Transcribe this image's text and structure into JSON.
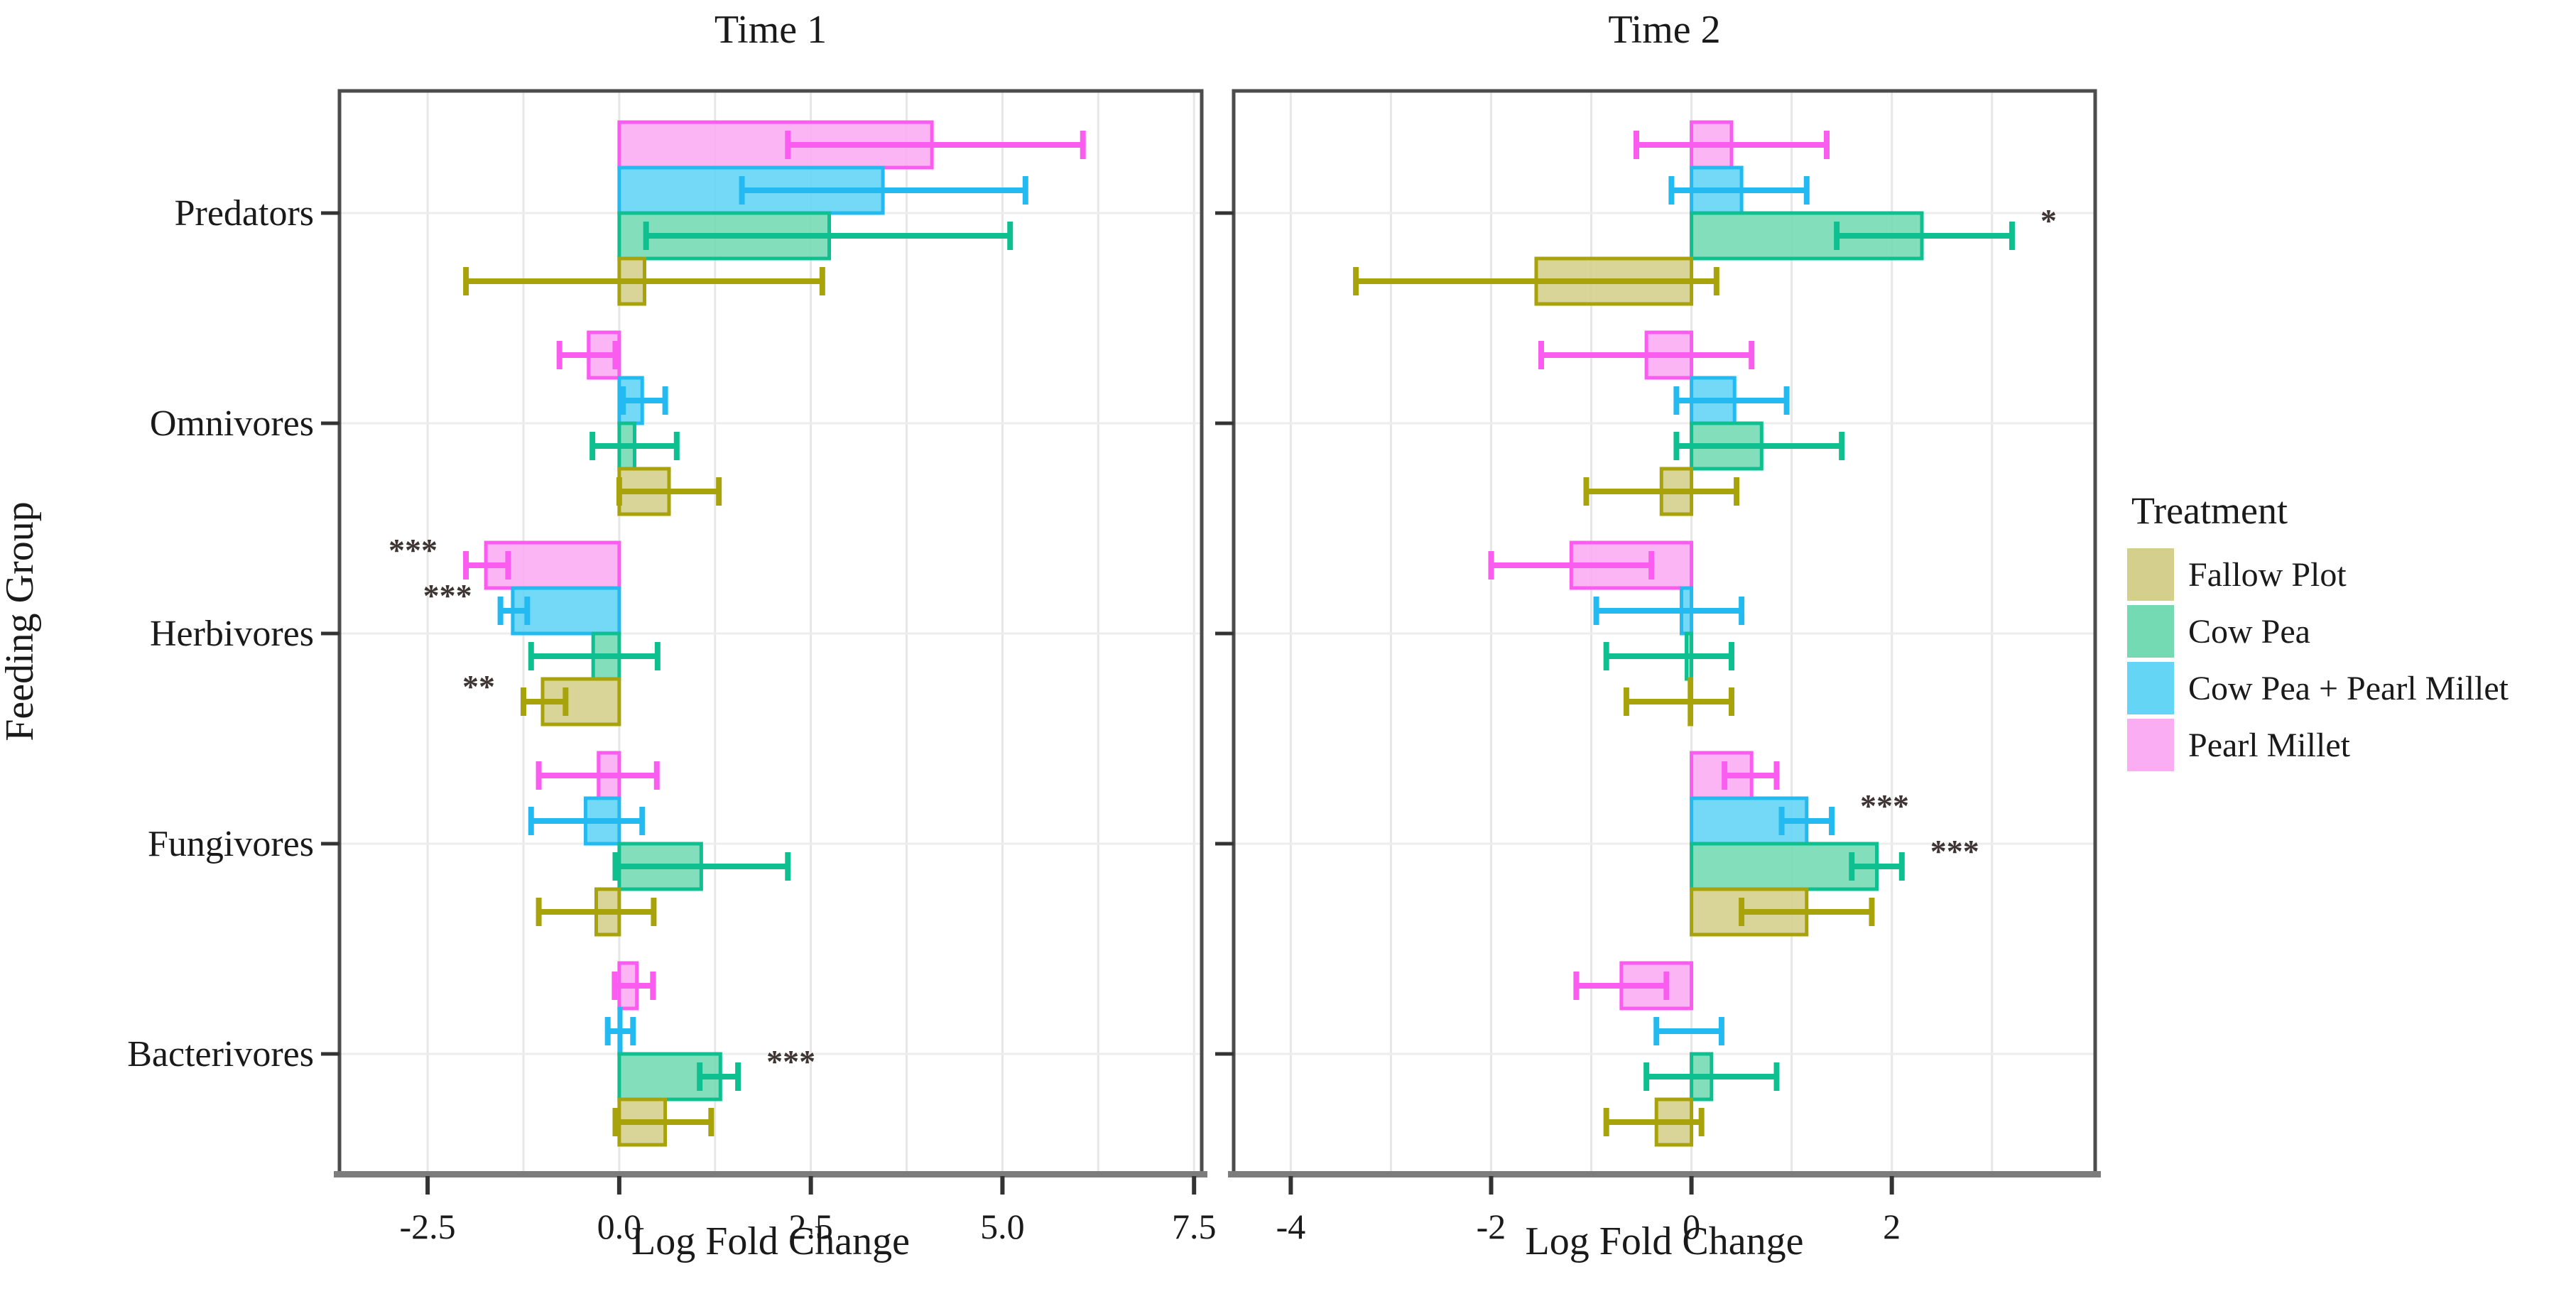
{
  "legend": {
    "title": "Treatment",
    "position": "right",
    "items": [
      {
        "label": "Fallow Plot",
        "color": "#d5cf8d"
      },
      {
        "label": "Cow Pea",
        "color": "#74dab4"
      },
      {
        "label": "Cow Pea + Pearl Millet",
        "color": "#65d5f6"
      },
      {
        "label": "Pearl Millet",
        "color": "#fbadf4"
      }
    ]
  },
  "colors": {
    "grid": "#e7e7e7",
    "row_grid": "#ededed",
    "panel_border": "#4c4c4c",
    "axis_line": "#7c7c7c",
    "tick": "#333333",
    "sig": "#3f3434"
  },
  "chart_data": [
    {
      "type": "bar",
      "orientation": "horizontal",
      "title": "Time 1",
      "xlabel": "Log Fold Change",
      "ylabel": "Feeding Group",
      "categories": [
        "Predators",
        "Omnivores",
        "Herbivores",
        "Fungivores",
        "Bacterivores"
      ],
      "xlim": [
        -3.65,
        7.6
      ],
      "xticks": [
        -2.5,
        0,
        2.5,
        5,
        7.5
      ],
      "xtick_labels": [
        "-2.5",
        "0.0",
        "2.5",
        "5.0",
        "7.5"
      ],
      "grid_x": [
        -2.5,
        -1.25,
        0,
        1.25,
        2.5,
        3.75,
        5,
        6.25,
        7.5
      ],
      "series": [
        {
          "name": "Fallow Plot",
          "row": 3,
          "fill": "#d5cf8d",
          "stroke": "#a8a30b",
          "values": [
            0.33,
            0.65,
            -1.0,
            -0.3,
            0.6
          ],
          "ci_low": [
            -2.0,
            0.0,
            -1.25,
            -1.05,
            -0.05
          ],
          "ci_high": [
            2.65,
            1.3,
            -0.7,
            0.45,
            1.2
          ],
          "sig": [
            "",
            "",
            "**",
            "",
            ""
          ]
        },
        {
          "name": "Cow Pea",
          "row": 2,
          "fill": "#74dab4",
          "stroke": "#0ec08f",
          "values": [
            2.74,
            0.2,
            -0.34,
            1.07,
            1.32
          ],
          "ci_low": [
            0.35,
            -0.35,
            -1.15,
            -0.05,
            1.05
          ],
          "ci_high": [
            5.1,
            0.75,
            0.5,
            2.2,
            1.55
          ],
          "sig": [
            "",
            "",
            "",
            "",
            "***"
          ]
        },
        {
          "name": "Cow Pea + Pearl Millet",
          "row": 1,
          "fill": "#65d5f6",
          "stroke": "#22baf0",
          "values": [
            3.44,
            0.3,
            -1.39,
            -0.44,
            0.02
          ],
          "ci_low": [
            1.6,
            0.05,
            -1.55,
            -1.15,
            -0.15
          ],
          "ci_high": [
            5.3,
            0.6,
            -1.2,
            0.3,
            0.18
          ],
          "sig": [
            "",
            "",
            "***",
            "",
            ""
          ]
        },
        {
          "name": "Pearl Millet",
          "row": 0,
          "fill": "#fbadf4",
          "stroke": "#fa5cf0",
          "values": [
            4.08,
            -0.4,
            -1.74,
            -0.27,
            0.23
          ],
          "ci_low": [
            2.2,
            -0.78,
            -2.0,
            -1.05,
            -0.06
          ],
          "ci_high": [
            6.05,
            -0.05,
            -1.45,
            0.49,
            0.44
          ],
          "sig": [
            "",
            "",
            "***",
            "",
            ""
          ]
        }
      ]
    },
    {
      "type": "bar",
      "orientation": "horizontal",
      "title": "Time 2",
      "xlabel": "Log Fold Change",
      "ylabel": "Feeding Group",
      "categories": [
        "Predators",
        "Omnivores",
        "Herbivores",
        "Fungivores",
        "Bacterivores"
      ],
      "xlim": [
        -4.57,
        4.03
      ],
      "xticks": [
        -4,
        -2,
        0,
        2
      ],
      "xtick_labels": [
        "-4",
        "-2",
        "0",
        "2"
      ],
      "grid_x": [
        -4,
        -3,
        -2,
        -1,
        0,
        1,
        2,
        3
      ],
      "series": [
        {
          "name": "Fallow Plot",
          "row": 3,
          "fill": "#d5cf8d",
          "stroke": "#a8a30b",
          "values": [
            -1.55,
            -0.3,
            -0.02,
            1.15,
            -0.35
          ],
          "ci_low": [
            -3.35,
            -1.05,
            -0.65,
            0.5,
            -0.85
          ],
          "ci_high": [
            0.25,
            0.45,
            0.4,
            1.8,
            0.1
          ],
          "sig": [
            "",
            "",
            "",
            "",
            ""
          ]
        },
        {
          "name": "Cow Pea",
          "row": 2,
          "fill": "#74dab4",
          "stroke": "#0ec08f",
          "values": [
            2.3,
            0.7,
            -0.05,
            1.85,
            0.2
          ],
          "ci_low": [
            1.45,
            -0.15,
            -0.85,
            1.6,
            -0.45
          ],
          "ci_high": [
            3.2,
            1.5,
            0.4,
            2.1,
            0.85
          ],
          "sig": [
            "*",
            "",
            "",
            "***",
            ""
          ]
        },
        {
          "name": "Cow Pea + Pearl Millet",
          "row": 1,
          "fill": "#65d5f6",
          "stroke": "#22baf0",
          "values": [
            0.5,
            0.43,
            -0.1,
            1.15,
            0.0
          ],
          "ci_low": [
            -0.2,
            -0.15,
            -0.95,
            0.9,
            -0.35
          ],
          "ci_high": [
            1.15,
            0.95,
            0.5,
            1.4,
            0.3
          ],
          "sig": [
            "",
            "",
            "",
            "***",
            ""
          ]
        },
        {
          "name": "Pearl Millet",
          "row": 0,
          "fill": "#fbadf4",
          "stroke": "#fa5cf0",
          "values": [
            0.4,
            -0.45,
            -1.2,
            0.6,
            -0.7
          ],
          "ci_low": [
            -0.55,
            -1.5,
            -2.0,
            0.33,
            -1.15
          ],
          "ci_high": [
            1.35,
            0.6,
            -0.4,
            0.85,
            -0.25
          ],
          "sig": [
            "",
            "",
            "",
            "",
            ""
          ]
        }
      ]
    }
  ]
}
